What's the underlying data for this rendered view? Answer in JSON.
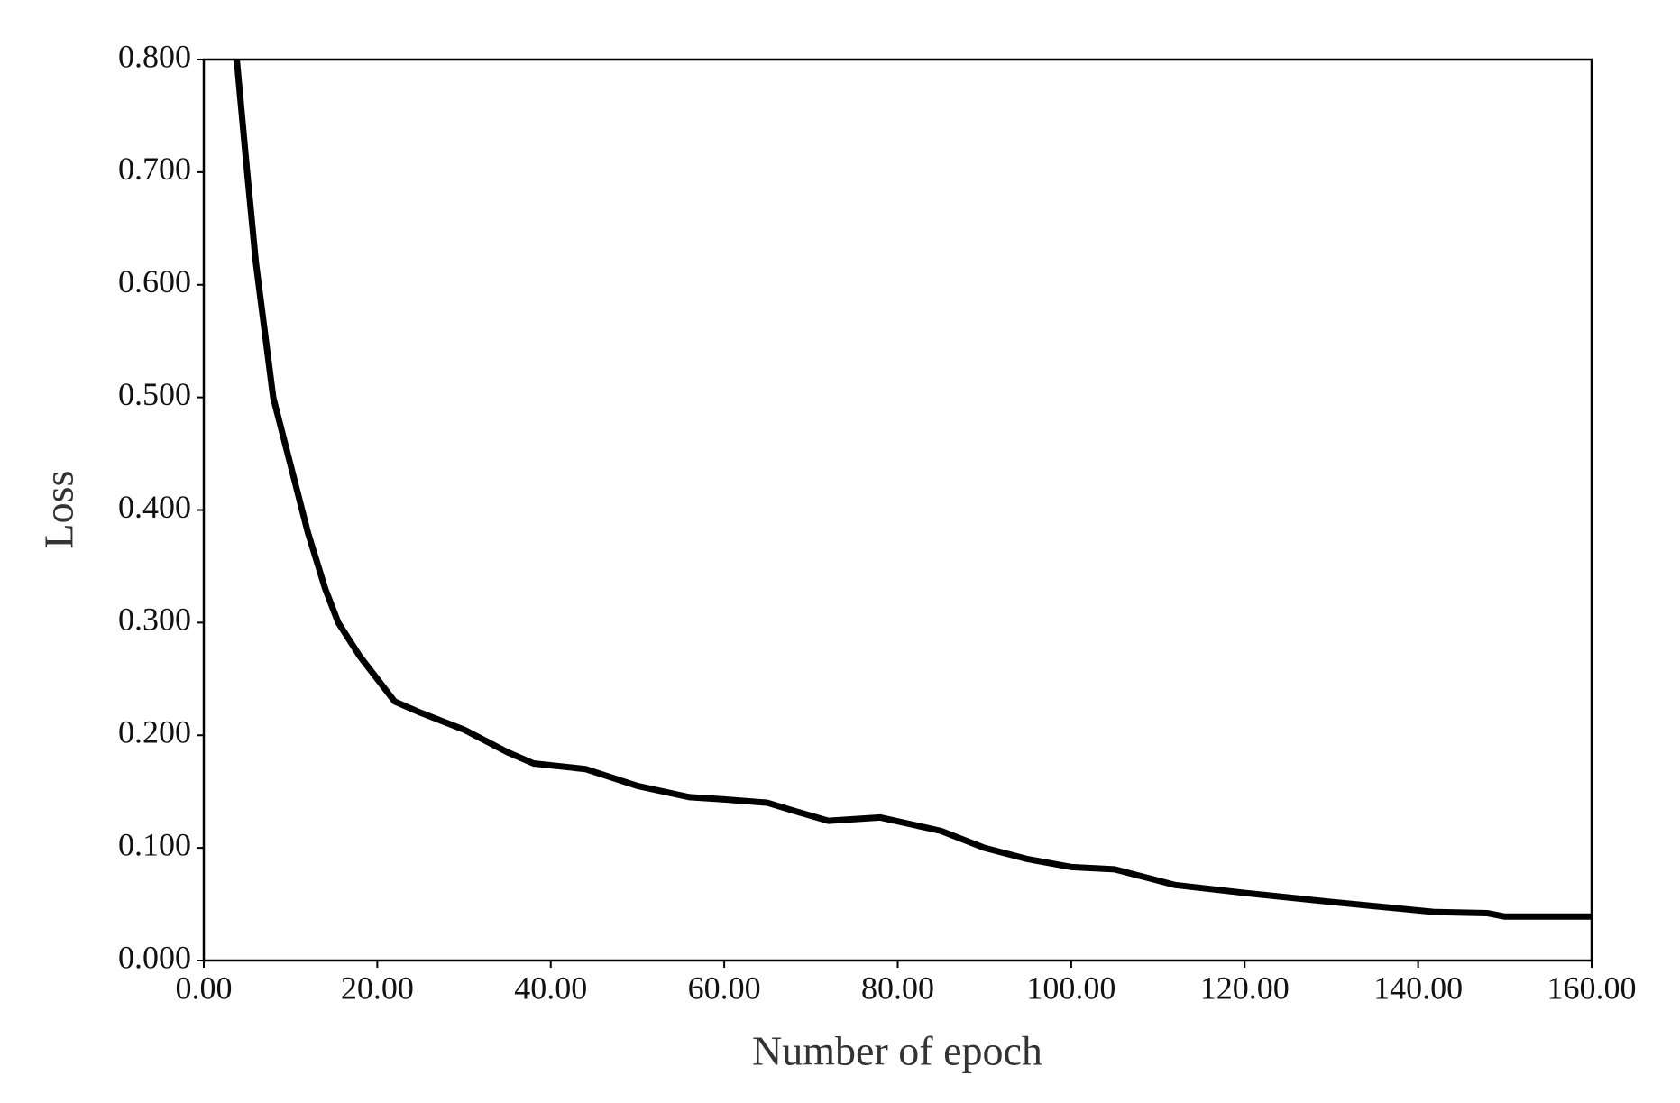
{
  "chart_data": {
    "type": "line",
    "xlabel": "Number of epoch",
    "ylabel": "Loss",
    "xlim": [
      0,
      160
    ],
    "ylim": [
      0,
      0.8
    ],
    "xticks": [
      {
        "value": 0,
        "label": "0.00"
      },
      {
        "value": 20,
        "label": "20.00"
      },
      {
        "value": 40,
        "label": "40.00"
      },
      {
        "value": 60,
        "label": "60.00"
      },
      {
        "value": 80,
        "label": "80.00"
      },
      {
        "value": 100,
        "label": "100.00"
      },
      {
        "value": 120,
        "label": "120.00"
      },
      {
        "value": 140,
        "label": "140.00"
      },
      {
        "value": 160,
        "label": "160.00"
      }
    ],
    "yticks": [
      {
        "value": 0,
        "label": "0.000"
      },
      {
        "value": 0.1,
        "label": "0.100"
      },
      {
        "value": 0.2,
        "label": "0.200"
      },
      {
        "value": 0.3,
        "label": "0.300"
      },
      {
        "value": 0.4,
        "label": "0.400"
      },
      {
        "value": 0.5,
        "label": "0.500"
      },
      {
        "value": 0.6,
        "label": "0.600"
      },
      {
        "value": 0.7,
        "label": "0.700"
      },
      {
        "value": 0.8,
        "label": "0.800"
      }
    ],
    "grid": false,
    "series": [
      {
        "color": "#000000",
        "x": [
          3.8,
          5,
          6,
          7,
          8,
          10,
          12,
          14,
          15.5,
          18,
          20,
          22,
          25,
          30,
          35,
          38,
          44,
          50,
          56,
          60,
          65,
          68,
          72,
          76,
          78,
          85,
          90,
          95,
          100,
          105,
          108,
          112,
          120,
          130,
          138,
          142,
          148,
          150,
          160
        ],
        "values": [
          0.8,
          0.7,
          0.62,
          0.56,
          0.5,
          0.44,
          0.38,
          0.33,
          0.3,
          0.27,
          0.25,
          0.23,
          0.22,
          0.205,
          0.185,
          0.175,
          0.17,
          0.155,
          0.145,
          0.143,
          0.14,
          0.133,
          0.124,
          0.126,
          0.127,
          0.115,
          0.1,
          0.09,
          0.083,
          0.081,
          0.075,
          0.067,
          0.06,
          0.052,
          0.046,
          0.043,
          0.042,
          0.039,
          0.039
        ]
      }
    ]
  }
}
